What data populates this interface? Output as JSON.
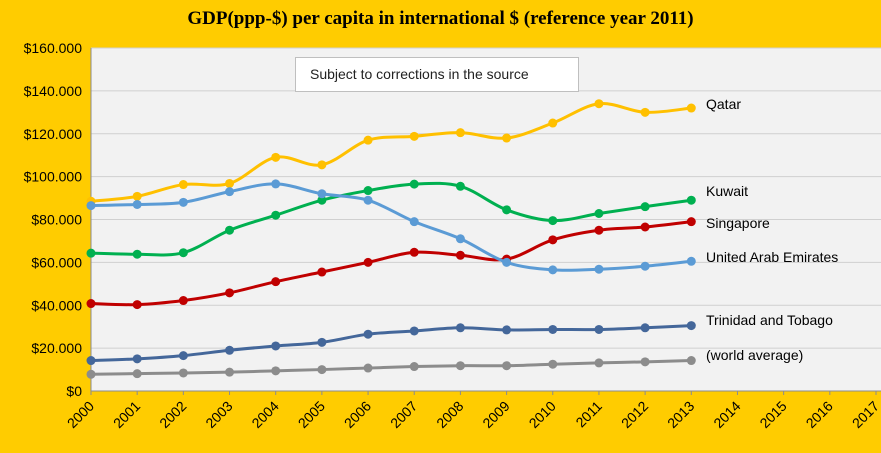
{
  "chart_data": {
    "type": "line",
    "title": "GDP(ppp-$) per capita in international  $ (reference year 2011)",
    "annotation": "Subject to corrections  in the source",
    "x_ticks": [
      "2000",
      "2001",
      "2002",
      "2003",
      "2004",
      "2005",
      "2006",
      "2007",
      "2008",
      "2009",
      "2010",
      "2011",
      "2012",
      "2013",
      "2014",
      "2015",
      "2016",
      "2017"
    ],
    "y_ticks": [
      "$0",
      "$20.000",
      "$40.000",
      "$60.000",
      "$80.000",
      "$100.000",
      "$120.000",
      "$140.000",
      "$160.000"
    ],
    "xlim": [
      2000,
      2017
    ],
    "ylim": [
      0,
      160000
    ],
    "grid": "horizontal",
    "background": "#F2F2F2",
    "series": [
      {
        "name": "Qatar",
        "color": "#FFC000",
        "x": [
          2000,
          2001,
          2002,
          2003,
          2004,
          2005,
          2006,
          2007,
          2008,
          2009,
          2010,
          2011,
          2012,
          2013
        ],
        "values": [
          88500,
          90800,
          96300,
          96800,
          109000,
          105500,
          117000,
          118800,
          120500,
          118000,
          125000,
          134000,
          130000,
          132000
        ]
      },
      {
        "name": "Kuwait",
        "color": "#00B050",
        "x": [
          2000,
          2001,
          2002,
          2003,
          2004,
          2005,
          2006,
          2007,
          2008,
          2009,
          2010,
          2011,
          2012,
          2013
        ],
        "values": [
          64300,
          63800,
          64500,
          75000,
          82000,
          89000,
          93500,
          96500,
          95500,
          84500,
          79500,
          82800,
          86000,
          89000
        ]
      },
      {
        "name": "Singapore",
        "color": "#C00000",
        "x": [
          2000,
          2001,
          2002,
          2003,
          2004,
          2005,
          2006,
          2007,
          2008,
          2009,
          2010,
          2011,
          2012,
          2013
        ],
        "values": [
          40800,
          40300,
          42200,
          45800,
          51000,
          55500,
          60000,
          64700,
          63300,
          61500,
          70500,
          75000,
          76500,
          79000
        ]
      },
      {
        "name": "United Arab Emirates",
        "color": "#5B9BD5",
        "x": [
          2000,
          2001,
          2002,
          2003,
          2004,
          2005,
          2006,
          2007,
          2008,
          2009,
          2010,
          2011,
          2012,
          2013
        ],
        "values": [
          86500,
          87000,
          88000,
          93000,
          96600,
          92000,
          89000,
          79000,
          71000,
          60000,
          56500,
          56800,
          58200,
          60500
        ]
      },
      {
        "name": "Trinidad and Tobago",
        "color": "#44679A",
        "x": [
          2000,
          2001,
          2002,
          2003,
          2004,
          2005,
          2006,
          2007,
          2008,
          2009,
          2010,
          2011,
          2012,
          2013
        ],
        "values": [
          14200,
          15000,
          16500,
          19000,
          21000,
          22700,
          26500,
          28000,
          29500,
          28500,
          28700,
          28700,
          29500,
          30500
        ]
      },
      {
        "name": "(world average)",
        "color": "#8C8C8C",
        "x": [
          2000,
          2001,
          2002,
          2003,
          2004,
          2005,
          2006,
          2007,
          2008,
          2009,
          2010,
          2011,
          2012,
          2013
        ],
        "values": [
          7800,
          8100,
          8400,
          8800,
          9400,
          10000,
          10700,
          11400,
          11800,
          11800,
          12500,
          13100,
          13600,
          14200
        ]
      }
    ]
  }
}
